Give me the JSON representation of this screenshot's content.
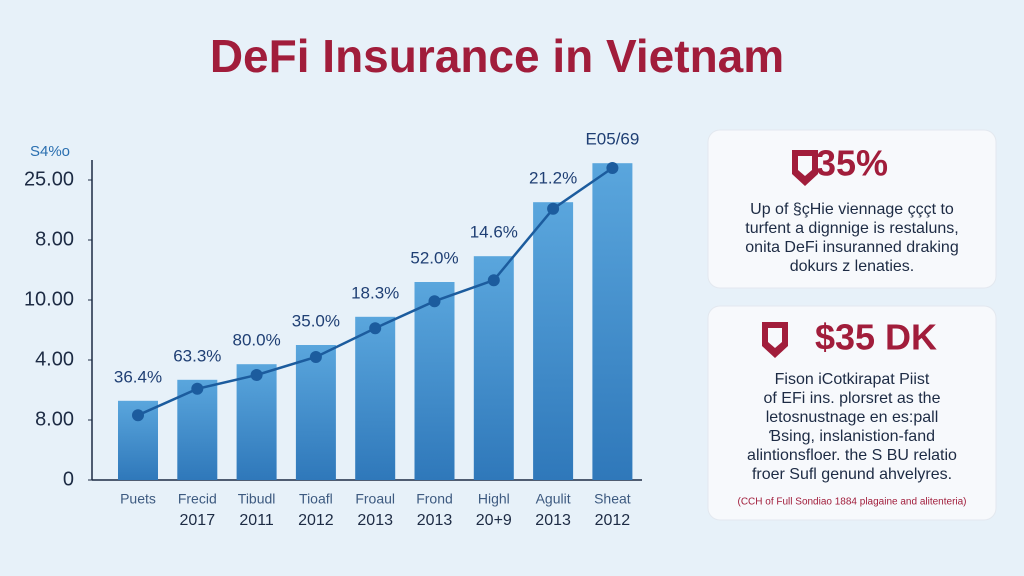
{
  "chart_data": {
    "type": "bar",
    "title": "DeFi Insurance in Vietnam",
    "y_axis_label": "S4%o",
    "categories": [
      "Puets",
      "Frecid",
      "Tibudl",
      "Tioafl",
      "Froaul",
      "Frond",
      "Highl",
      "Agulit",
      "Sheat"
    ],
    "category_years": [
      null,
      "2017",
      "2011",
      "2012",
      "2013",
      "2013",
      "20+9",
      "2013",
      "2012"
    ],
    "series": [
      {
        "name": "bars",
        "type": "bar",
        "color": "#3f8fd0",
        "values": [
          1.32,
          1.67,
          1.93,
          2.25,
          2.72,
          3.3,
          3.73,
          4.63,
          5.28
        ]
      },
      {
        "name": "trend",
        "type": "line",
        "color": "#1c5c9e",
        "values": [
          1.08,
          1.52,
          1.75,
          2.05,
          2.53,
          2.98,
          3.33,
          4.52,
          5.2
        ]
      }
    ],
    "point_labels": [
      "36.4%",
      "63.3%",
      "80.0%",
      "35.0%",
      "18.3%",
      "52.0%",
      "14.6%",
      "21.2%",
      "E05/69"
    ],
    "ylim": [
      0,
      5.5
    ],
    "yticks": [
      0,
      {
        "value": 1,
        "label": "8.00"
      },
      {
        "value": 2,
        "label": "4.00"
      },
      {
        "value": 3,
        "label": "10.00"
      },
      {
        "value": 4,
        "label": "8.00"
      },
      {
        "value": 5,
        "label": "25.00"
      }
    ]
  },
  "cards": [
    {
      "headline": "35%",
      "lines": [
        "Up of §çHie viennage çççt to",
        "turfent a dignnige is restaluns,",
        "onita DeFi insuranned draking",
        "dokurs z lenaties."
      ]
    },
    {
      "headline": "$35 DK",
      "lines": [
        "Fison iCotkirapat Piist",
        "of EFi ins. plorsret as the",
        "letosnustnage en es:pall",
        "Ɓsing, inslanistion-fand",
        "alintionsfloer. the S BU relatio",
        "froer Sufl genund ahvelyres."
      ],
      "footnote": "(CCH of Full Sondiao 1884 plagaine and alitenteria)"
    }
  ]
}
